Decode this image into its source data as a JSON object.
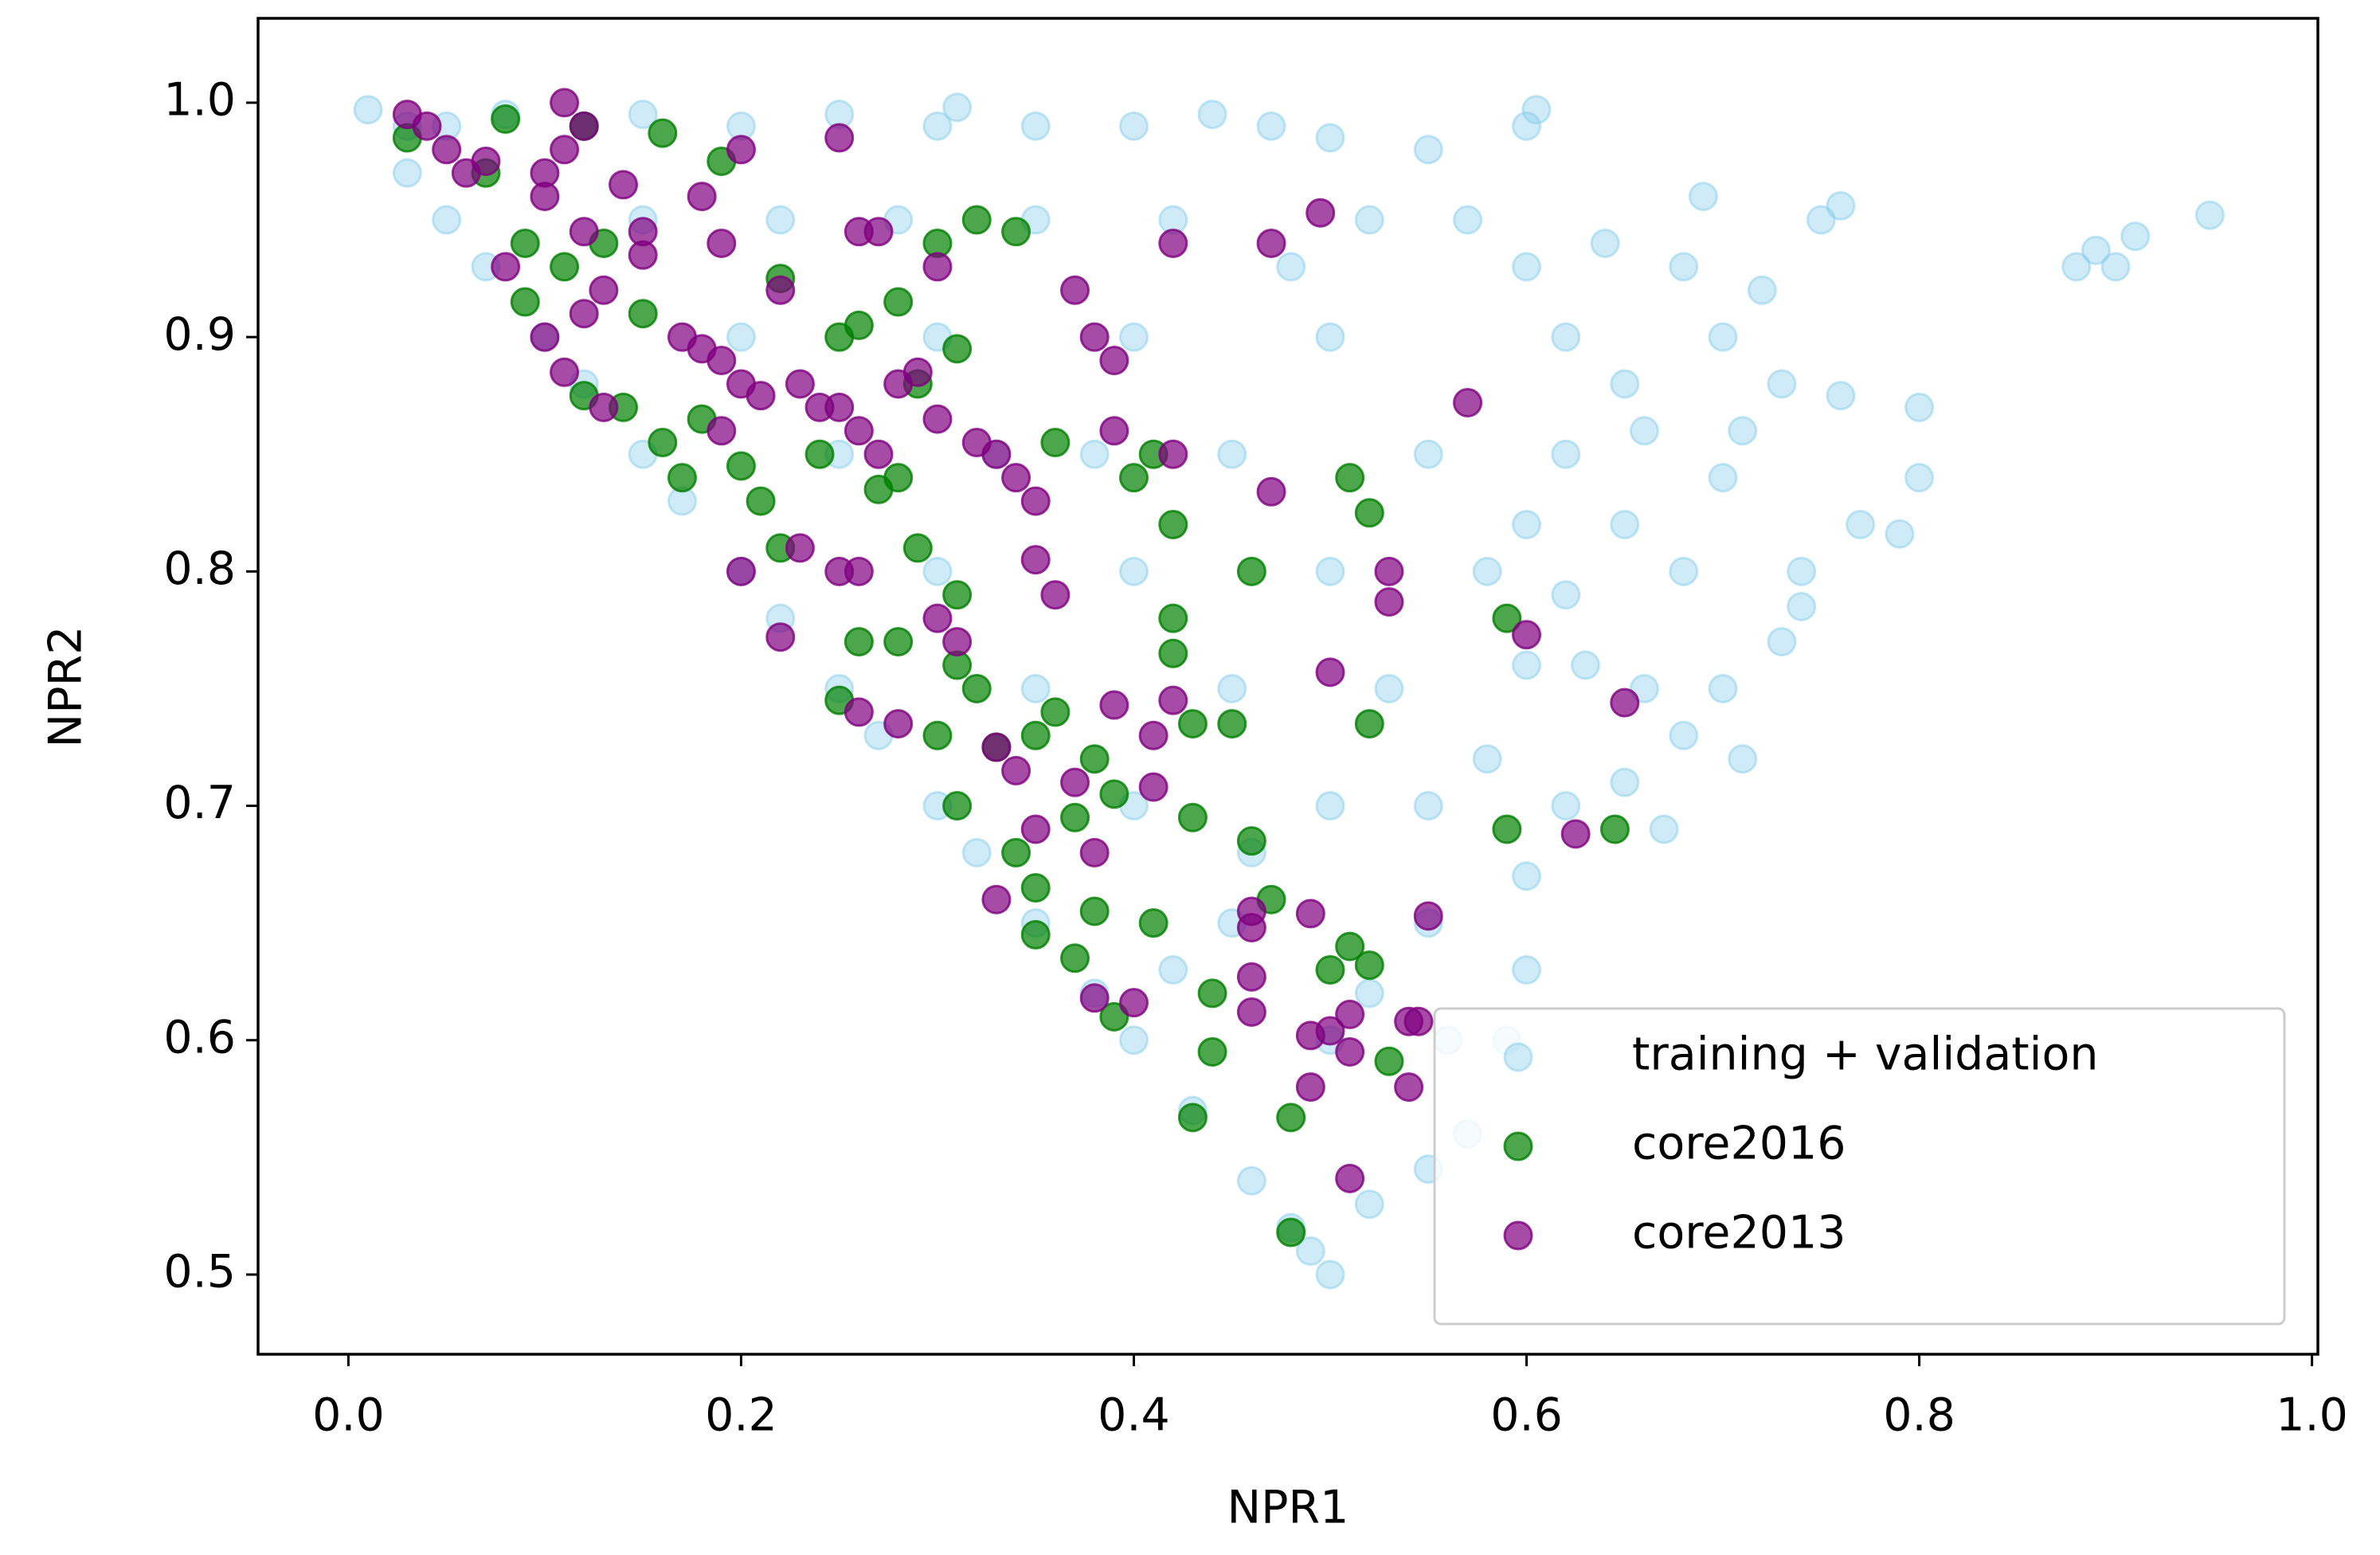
{
  "chart_data": {
    "type": "scatter",
    "xlabel": "NPR1",
    "ylabel": "NPR2",
    "xlim": [
      -0.046,
      1.003
    ],
    "ylim": [
      0.466,
      1.036
    ],
    "xticks": [
      {
        "value": 0,
        "label": "0.0"
      },
      0.2,
      0.4,
      0.6,
      0.8,
      {
        "value": 1,
        "label": "1.0"
      }
    ],
    "yticks": [
      0.5,
      0.6,
      0.7,
      0.8,
      0.9,
      {
        "value": 1,
        "label": "1.0"
      }
    ],
    "grid": false,
    "legend": "lower right",
    "series": [
      {
        "name": "training + validation",
        "color": "#87ceeb",
        "alpha": 0.4,
        "x": [
          0.01,
          0.03,
          0.05,
          0.08,
          0.12,
          0.15,
          0.2,
          0.25,
          0.3,
          0.31,
          0.35,
          0.4,
          0.44,
          0.47,
          0.5,
          0.55,
          0.6,
          0.605,
          0.57,
          0.6,
          0.62,
          0.65,
          0.68,
          0.7,
          0.72,
          0.75,
          0.76,
          0.73,
          0.76,
          0.8,
          0.8,
          0.79,
          0.77,
          0.74,
          0.7,
          0.68,
          0.65,
          0.62,
          0.6,
          0.58,
          0.63,
          0.66,
          0.7,
          0.71,
          0.73,
          0.74,
          0.68,
          0.65,
          0.62,
          0.6,
          0.6,
          0.59,
          0.57,
          0.55,
          0.52,
          0.5,
          0.49,
          0.48,
          0.46,
          0.43,
          0.4,
          0.38,
          0.35,
          0.32,
          0.3,
          0.27,
          0.25,
          0.22,
          0.2,
          0.17,
          0.15,
          0.12,
          0.1,
          0.07,
          0.05,
          0.03,
          0.88,
          0.89,
          0.91,
          0.9,
          0.948,
          0.5,
          0.45,
          0.5,
          0.45,
          0.5,
          0.45,
          0.5,
          0.4,
          0.4,
          0.4,
          0.35,
          0.3,
          0.3,
          0.35,
          0.25,
          0.2,
          0.15,
          0.55,
          0.55,
          0.55,
          0.53,
          0.58,
          0.6,
          0.48,
          0.52,
          0.42,
          0.38,
          0.33,
          0.28,
          0.22,
          0.46,
          0.42,
          0.52,
          0.56,
          0.62,
          0.66,
          0.69,
          0.64,
          0.71,
          0.67
        ],
        "y": [
          0.997,
          0.99,
          0.99,
          0.995,
          0.99,
          0.995,
          0.99,
          0.995,
          0.99,
          0.998,
          0.99,
          0.99,
          0.995,
          0.99,
          0.985,
          0.98,
          0.99,
          0.997,
          0.95,
          0.93,
          0.9,
          0.88,
          0.93,
          0.9,
          0.92,
          0.95,
          0.956,
          0.88,
          0.875,
          0.87,
          0.84,
          0.816,
          0.82,
          0.8,
          0.84,
          0.8,
          0.82,
          0.85,
          0.82,
          0.8,
          0.76,
          0.75,
          0.75,
          0.72,
          0.77,
          0.785,
          0.73,
          0.71,
          0.7,
          0.67,
          0.63,
          0.6,
          0.56,
          0.545,
          0.53,
          0.5,
          0.51,
          0.52,
          0.54,
          0.57,
          0.6,
          0.62,
          0.65,
          0.68,
          0.7,
          0.73,
          0.75,
          0.78,
          0.8,
          0.83,
          0.85,
          0.88,
          0.9,
          0.93,
          0.95,
          0.97,
          0.93,
          0.937,
          0.943,
          0.93,
          0.952,
          0.9,
          0.85,
          0.8,
          0.75,
          0.7,
          0.65,
          0.6,
          0.7,
          0.8,
          0.9,
          0.95,
          0.9,
          0.8,
          0.75,
          0.85,
          0.9,
          0.95,
          0.7,
          0.85,
          0.65,
          0.75,
          0.72,
          0.76,
          0.93,
          0.95,
          0.95,
          0.85,
          0.85,
          0.95,
          0.95,
          0.68,
          0.63,
          0.62,
          0.6,
          0.79,
          0.86,
          0.96,
          0.94,
          0.86,
          0.69
        ]
      },
      {
        "name": "core2016",
        "color": "#008000",
        "alpha": 0.7,
        "x": [
          0.03,
          0.08,
          0.12,
          0.16,
          0.19,
          0.07,
          0.09,
          0.13,
          0.11,
          0.09,
          0.15,
          0.12,
          0.16,
          0.18,
          0.14,
          0.17,
          0.2,
          0.21,
          0.22,
          0.25,
          0.26,
          0.28,
          0.31,
          0.32,
          0.34,
          0.3,
          0.24,
          0.27,
          0.28,
          0.29,
          0.31,
          0.26,
          0.28,
          0.31,
          0.32,
          0.25,
          0.3,
          0.33,
          0.35,
          0.36,
          0.31,
          0.34,
          0.35,
          0.35,
          0.37,
          0.38,
          0.39,
          0.38,
          0.37,
          0.39,
          0.41,
          0.42,
          0.42,
          0.43,
          0.43,
          0.44,
          0.44,
          0.43,
          0.45,
          0.46,
          0.46,
          0.47,
          0.48,
          0.48,
          0.5,
          0.51,
          0.52,
          0.51,
          0.52,
          0.52,
          0.53,
          0.59,
          0.59,
          0.645,
          0.42,
          0.41,
          0.4,
          0.36,
          0.29,
          0.22
        ],
        "y": [
          0.985,
          0.993,
          0.99,
          0.987,
          0.975,
          0.97,
          0.94,
          0.94,
          0.93,
          0.915,
          0.91,
          0.875,
          0.855,
          0.865,
          0.87,
          0.84,
          0.845,
          0.83,
          0.81,
          0.9,
          0.905,
          0.915,
          0.895,
          0.95,
          0.945,
          0.94,
          0.85,
          0.835,
          0.84,
          0.81,
          0.79,
          0.77,
          0.77,
          0.76,
          0.75,
          0.745,
          0.73,
          0.725,
          0.73,
          0.74,
          0.7,
          0.68,
          0.665,
          0.645,
          0.695,
          0.72,
          0.705,
          0.655,
          0.635,
          0.61,
          0.65,
          0.765,
          0.78,
          0.695,
          0.735,
          0.62,
          0.595,
          0.567,
          0.735,
          0.685,
          0.8,
          0.66,
          0.567,
          0.518,
          0.63,
          0.64,
          0.632,
          0.84,
          0.825,
          0.735,
          0.591,
          0.78,
          0.69,
          0.69,
          0.82,
          0.85,
          0.84,
          0.855,
          0.88,
          0.925
        ]
      },
      {
        "name": "core2013",
        "color": "#800080",
        "alpha": 0.7,
        "x": [
          0.03,
          0.04,
          0.05,
          0.06,
          0.07,
          0.1,
          0.11,
          0.11,
          0.12,
          0.1,
          0.12,
          0.14,
          0.15,
          0.15,
          0.18,
          0.19,
          0.08,
          0.1,
          0.12,
          0.13,
          0.11,
          0.13,
          0.17,
          0.18,
          0.19,
          0.2,
          0.19,
          0.21,
          0.22,
          0.23,
          0.24,
          0.25,
          0.26,
          0.27,
          0.28,
          0.29,
          0.3,
          0.25,
          0.2,
          0.26,
          0.27,
          0.3,
          0.32,
          0.33,
          0.34,
          0.35,
          0.3,
          0.35,
          0.36,
          0.37,
          0.38,
          0.39,
          0.39,
          0.42,
          0.42,
          0.47,
          0.495,
          0.57,
          0.47,
          0.53,
          0.53,
          0.6,
          0.65,
          0.625,
          0.5,
          0.42,
          0.41,
          0.41,
          0.39,
          0.34,
          0.35,
          0.37,
          0.33,
          0.26,
          0.28,
          0.2,
          0.23,
          0.25,
          0.26,
          0.22,
          0.33,
          0.38,
          0.46,
          0.46,
          0.46,
          0.46,
          0.49,
          0.49,
          0.5,
          0.51,
          0.51,
          0.54,
          0.545,
          0.55,
          0.49,
          0.51,
          0.54,
          0.38,
          0.4,
          0.31
        ],
        "y": [
          0.995,
          0.99,
          0.98,
          0.97,
          0.975,
          0.97,
          1.0,
          0.98,
          0.99,
          0.96,
          0.945,
          0.965,
          0.945,
          0.935,
          0.96,
          0.94,
          0.93,
          0.9,
          0.91,
          0.92,
          0.885,
          0.87,
          0.9,
          0.895,
          0.89,
          0.88,
          0.86,
          0.875,
          0.92,
          0.88,
          0.87,
          0.87,
          0.86,
          0.85,
          0.88,
          0.885,
          0.865,
          0.985,
          0.98,
          0.945,
          0.945,
          0.93,
          0.855,
          0.85,
          0.84,
          0.83,
          0.78,
          0.805,
          0.79,
          0.92,
          0.9,
          0.89,
          0.86,
          0.94,
          0.85,
          0.94,
          0.953,
          0.872,
          0.834,
          0.8,
          0.787,
          0.773,
          0.744,
          0.688,
          0.757,
          0.745,
          0.73,
          0.708,
          0.743,
          0.715,
          0.69,
          0.71,
          0.725,
          0.74,
          0.735,
          0.8,
          0.81,
          0.8,
          0.8,
          0.772,
          0.66,
          0.68,
          0.655,
          0.648,
          0.627,
          0.612,
          0.654,
          0.602,
          0.604,
          0.611,
          0.595,
          0.608,
          0.608,
          0.653,
          0.58,
          0.541,
          0.58,
          0.618,
          0.616,
          0.77
        ]
      }
    ]
  }
}
